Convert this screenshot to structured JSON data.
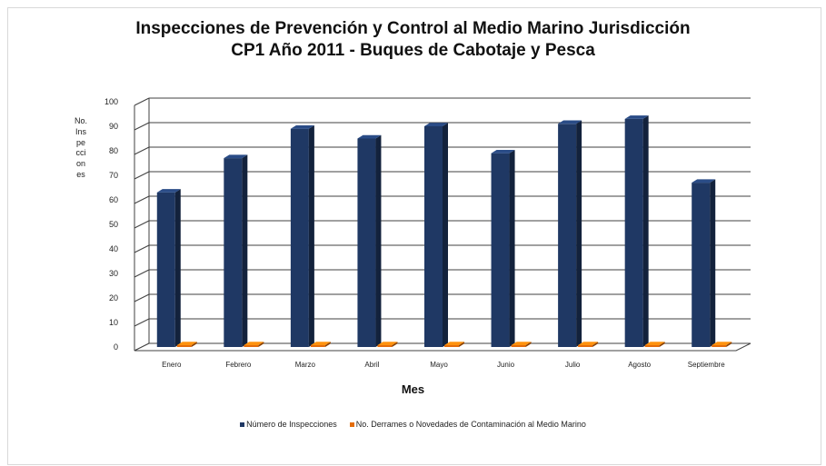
{
  "chart_data": {
    "type": "bar",
    "title": "Inspecciones de Prevención y Control al Medio Marino Jurisdicción\nCP1 Año 2011 - Buques de Cabotaje y Pesca",
    "xlabel": "Mes",
    "ylabel": "No. Inspecciones",
    "ylim": [
      0,
      100
    ],
    "yticks": [
      0,
      10,
      20,
      30,
      40,
      50,
      60,
      70,
      80,
      90,
      100
    ],
    "grid": true,
    "legend_position": "bottom",
    "categories": [
      "Enero",
      "Febrero",
      "Marzo",
      "Abril",
      "Mayo",
      "Junio",
      "Julio",
      "Agosto",
      "Septiembre"
    ],
    "series": [
      {
        "name": "Número de Inspecciones",
        "color": "#1f3864",
        "values": [
          63,
          77,
          89,
          85,
          90,
          79,
          91,
          93,
          67
        ]
      },
      {
        "name": "No. Derrames o Novedades de Contaminación al Medio Marino",
        "color": "#e46c0a",
        "values": [
          0,
          0,
          0,
          0,
          0,
          0,
          0,
          0,
          0
        ]
      }
    ]
  }
}
